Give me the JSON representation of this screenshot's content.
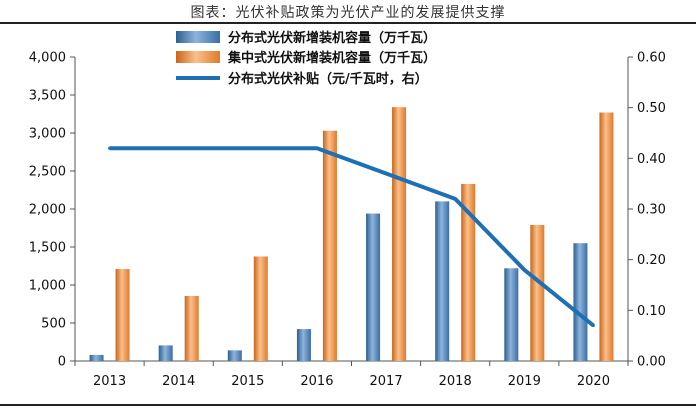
{
  "title": "图表：光伏补贴政策为光伏产业的发展提供支撑",
  "chart_data": {
    "type": "bar",
    "categories": [
      "2013",
      "2014",
      "2015",
      "2016",
      "2017",
      "2018",
      "2019",
      "2020"
    ],
    "series": [
      {
        "name": "分布式光伏新增装机容量（万千瓦）",
        "kind": "bar",
        "axis": "left",
        "color": "#4F81BD",
        "values": [
          80,
          205,
          140,
          420,
          1940,
          2100,
          1220,
          1550
        ]
      },
      {
        "name": "集中式光伏新增装机容量（万千瓦）",
        "kind": "bar",
        "axis": "left",
        "color": "#F79646",
        "values": [
          1210,
          855,
          1375,
          3030,
          3340,
          2330,
          1790,
          3270
        ]
      },
      {
        "name": "分布式光伏补贴（元/千瓦时，右）",
        "kind": "line",
        "axis": "right",
        "color": "#1F6FB5",
        "values": [
          0.42,
          0.42,
          0.42,
          0.42,
          0.37,
          0.32,
          0.18,
          0.07
        ]
      }
    ],
    "left_axis": {
      "ylim": [
        0,
        4000
      ],
      "ticks": [
        0,
        500,
        1000,
        1500,
        2000,
        2500,
        3000,
        3500,
        4000
      ],
      "tick_labels": [
        "0",
        "500",
        "1,000",
        "1,500",
        "2,000",
        "2,500",
        "3,000",
        "3,500",
        "4,000"
      ]
    },
    "right_axis": {
      "ylim": [
        0,
        0.6
      ],
      "ticks": [
        0,
        0.1,
        0.2,
        0.3,
        0.4,
        0.5,
        0.6
      ],
      "tick_labels": [
        "0.00",
        "0.10",
        "0.20",
        "0.30",
        "0.40",
        "0.50",
        "0.60"
      ]
    },
    "legend_position": "top-center",
    "grid": false
  }
}
